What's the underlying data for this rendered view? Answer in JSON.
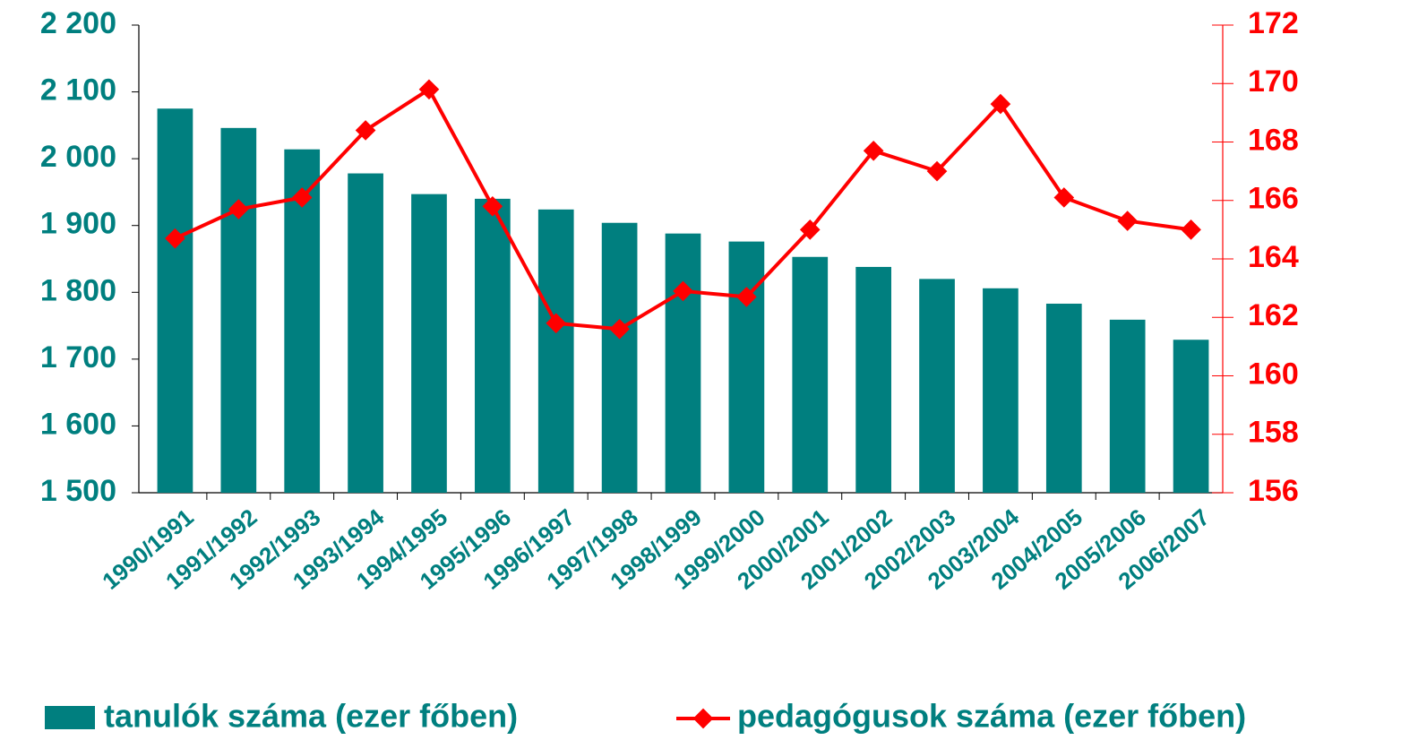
{
  "chart_data": {
    "type": "bar",
    "categories": [
      "1990/1991",
      "1991/1992",
      "1992/1993",
      "1993/1994",
      "1994/1995",
      "1995/1996",
      "1996/1997",
      "1997/1998",
      "1998/1999",
      "1999/2000",
      "2000/2001",
      "2001/2002",
      "2002/2003",
      "2003/2004",
      "2004/2005",
      "2005/2006",
      "2006/2007"
    ],
    "series": [
      {
        "name": "tanulók száma (ezer főben)",
        "type": "bar",
        "color": "#007f7f",
        "axis": "y",
        "values": [
          2075,
          2046,
          2014,
          1978,
          1947,
          1940,
          1924,
          1904,
          1888,
          1876,
          1853,
          1838,
          1820,
          1806,
          1783,
          1759,
          1729
        ]
      },
      {
        "name": "pedagógusok száma (ezer főben)",
        "type": "line",
        "color": "#ff0000",
        "axis": "y2",
        "values": [
          164.7,
          165.7,
          166.1,
          168.4,
          169.8,
          165.8,
          161.8,
          161.6,
          162.9,
          162.7,
          165.0,
          167.7,
          167.0,
          169.3,
          166.1,
          165.3,
          165.0
        ]
      }
    ],
    "ylim": [
      1500,
      2200
    ],
    "yticks": [
      {
        "value": 1500,
        "label": "1 500"
      },
      {
        "value": 1600,
        "label": "1 600"
      },
      {
        "value": 1700,
        "label": "1 700"
      },
      {
        "value": 1800,
        "label": "1 800"
      },
      {
        "value": 1900,
        "label": "1 900"
      },
      {
        "value": 2000,
        "label": "2 000"
      },
      {
        "value": 2100,
        "label": "2 100"
      },
      {
        "value": 2200,
        "label": "2 200"
      }
    ],
    "y2lim": [
      156,
      172
    ],
    "y2ticks": [
      156,
      158,
      160,
      162,
      164,
      166,
      168,
      170,
      172
    ],
    "legend": "bottom"
  }
}
